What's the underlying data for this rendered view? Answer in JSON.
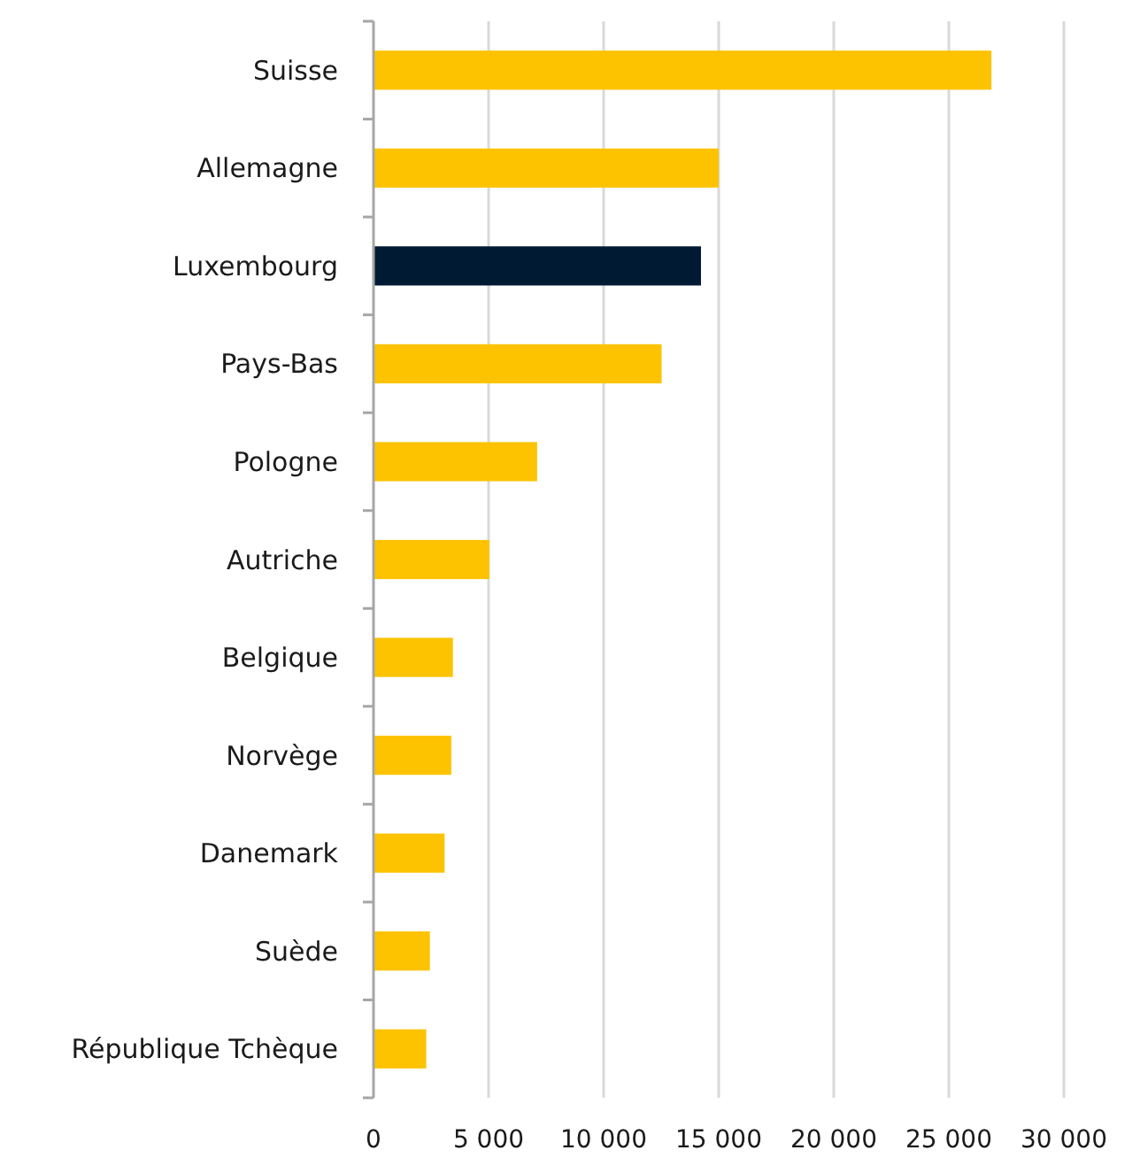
{
  "chart_data": {
    "type": "bar",
    "orientation": "horizontal",
    "categories": [
      "Suisse",
      "Allemagne",
      "Luxembourg",
      "Pays-Bas",
      "Pologne",
      "Autriche",
      "Belgique",
      "Norvège",
      "Danemark",
      "Suède",
      "République Tchèque"
    ],
    "values": [
      26850,
      15000,
      14230,
      12520,
      7110,
      5030,
      3450,
      3380,
      3090,
      2450,
      2290
    ],
    "colors": [
      "#fdc300",
      "#fdc300",
      "#001a33",
      "#fdc300",
      "#fdc300",
      "#fdc300",
      "#fdc300",
      "#fdc300",
      "#fdc300",
      "#fdc300",
      "#fdc300"
    ],
    "xlim": [
      0,
      30000
    ],
    "xticks": [
      0,
      {
        "value": 5000,
        "label": "5 000"
      },
      {
        "value": 10000,
        "label": "10 000"
      },
      {
        "value": 15000,
        "label": "15 000"
      },
      {
        "value": 20000,
        "label": "20 000"
      },
      {
        "value": 25000,
        "label": "25 000"
      },
      {
        "value": 30000,
        "label": "30 000"
      }
    ],
    "grid": "x"
  }
}
